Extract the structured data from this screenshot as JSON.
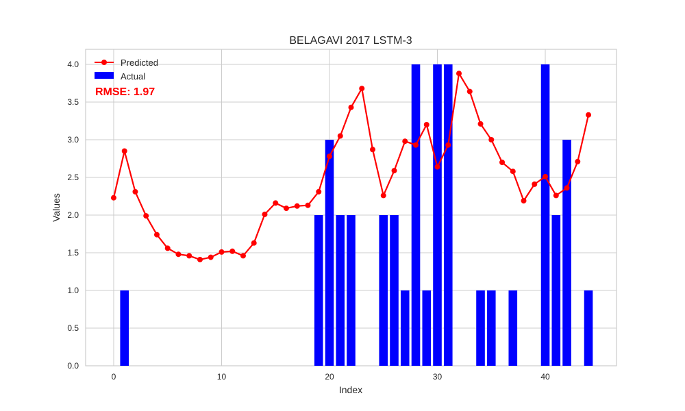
{
  "chart_data": {
    "type": "bar+line",
    "title": "BELAGAVI 2017 LSTM-3",
    "xlabel": "Index",
    "ylabel": "Values",
    "xlim": [
      -2.6,
      46.6
    ],
    "ylim": [
      0,
      4.2
    ],
    "xticks": [
      0,
      10,
      20,
      30,
      40
    ],
    "yticks": [
      0.0,
      0.5,
      1.0,
      1.5,
      2.0,
      2.5,
      3.0,
      3.5,
      4.0
    ],
    "xtick_labels": [
      "0",
      "10",
      "20",
      "30",
      "40"
    ],
    "ytick_labels": [
      "0.0",
      "0.5",
      "1.0",
      "1.5",
      "2.0",
      "2.5",
      "3.0",
      "3.5",
      "4.0"
    ],
    "grid": true,
    "legend_position": "top-left",
    "series": [
      {
        "name": "Predicted",
        "kind": "line",
        "marker": "circle",
        "color": "#ff0000",
        "x": [
          0,
          1,
          2,
          3,
          4,
          5,
          6,
          7,
          8,
          9,
          10,
          11,
          12,
          13,
          14,
          15,
          16,
          17,
          18,
          19,
          20,
          21,
          22,
          23,
          24,
          25,
          26,
          27,
          28,
          29,
          30,
          31,
          32,
          33,
          34,
          35,
          36,
          37,
          38,
          39,
          40,
          41,
          42,
          43,
          44
        ],
        "values": [
          2.23,
          2.85,
          2.31,
          1.99,
          1.74,
          1.56,
          1.48,
          1.46,
          1.41,
          1.44,
          1.51,
          1.52,
          1.46,
          1.63,
          2.01,
          2.16,
          2.09,
          2.12,
          2.13,
          2.31,
          2.78,
          3.05,
          3.43,
          3.68,
          2.87,
          2.26,
          2.59,
          2.98,
          2.93,
          3.2,
          2.64,
          2.93,
          3.88,
          3.64,
          3.21,
          3.0,
          2.7,
          2.58,
          2.19,
          2.41,
          2.51,
          2.26,
          2.36,
          2.71,
          3.33
        ]
      },
      {
        "name": "Actual",
        "kind": "bar",
        "color": "#0000ff",
        "x": [
          0,
          1,
          2,
          3,
          4,
          5,
          6,
          7,
          8,
          9,
          10,
          11,
          12,
          13,
          14,
          15,
          16,
          17,
          18,
          19,
          20,
          21,
          22,
          23,
          24,
          25,
          26,
          27,
          28,
          29,
          30,
          31,
          32,
          33,
          34,
          35,
          36,
          37,
          38,
          39,
          40,
          41,
          42,
          43,
          44
        ],
        "values": [
          0,
          1,
          0,
          0,
          0,
          0,
          0,
          0,
          0,
          0,
          0,
          0,
          0,
          0,
          0,
          0,
          0,
          0,
          0,
          2,
          3,
          2,
          2,
          0,
          0,
          2,
          2,
          1,
          4,
          1,
          4,
          4,
          0,
          0,
          1,
          1,
          0,
          1,
          0,
          0,
          4,
          2,
          3,
          0,
          1
        ]
      }
    ],
    "annotations": [
      {
        "text": "RMSE: 1.97",
        "color": "#ff0000",
        "position": "top-left"
      }
    ]
  }
}
